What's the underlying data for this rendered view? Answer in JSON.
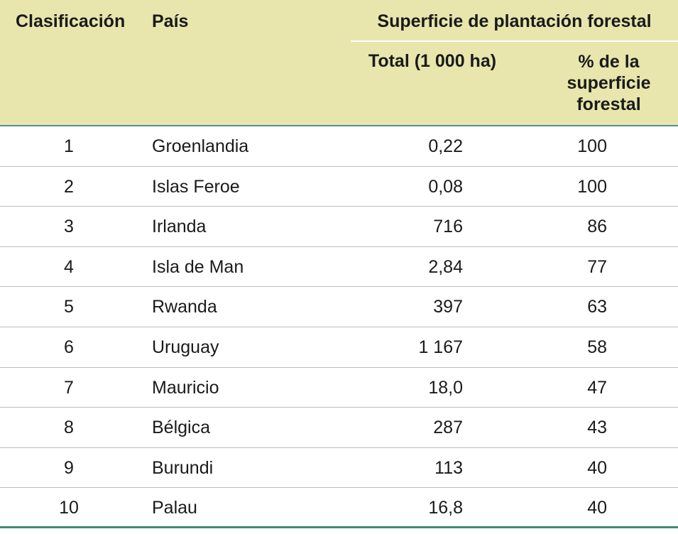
{
  "header": {
    "rank": "Clasificación",
    "country": "País",
    "group": "Superficie de plantación forestal",
    "total": "Total (1 000 ha)",
    "pct": "% de la superficie forestal"
  },
  "rows": [
    {
      "rank": "1",
      "country": "Groenlandia",
      "total": "0,22",
      "pct": "100"
    },
    {
      "rank": "2",
      "country": "Islas Feroe",
      "total": "0,08",
      "pct": "100"
    },
    {
      "rank": "3",
      "country": "Irlanda",
      "total": "716",
      "pct": "86"
    },
    {
      "rank": "4",
      "country": "Isla de Man",
      "total": "2,84",
      "pct": "77"
    },
    {
      "rank": "5",
      "country": "Rwanda",
      "total": "397",
      "pct": "63"
    },
    {
      "rank": "6",
      "country": "Uruguay",
      "total": "1 167",
      "pct": "58"
    },
    {
      "rank": "7",
      "country": "Mauricio",
      "total": "18,0",
      "pct": "47"
    },
    {
      "rank": "8",
      "country": "Bélgica",
      "total": "287",
      "pct": "43"
    },
    {
      "rank": "9",
      "country": "Burundi",
      "total": "113",
      "pct": "40"
    },
    {
      "rank": "10",
      "country": "Palau",
      "total": "16,8",
      "pct": "40"
    }
  ]
}
